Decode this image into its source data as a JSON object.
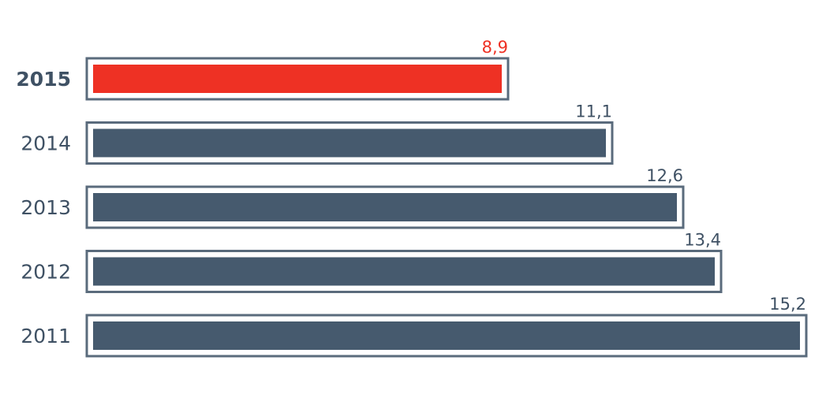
{
  "chart_data": {
    "type": "bar",
    "orientation": "horizontal",
    "title": "",
    "xlabel": "",
    "ylabel": "",
    "categories": [
      "2015",
      "2014",
      "2013",
      "2012",
      "2011"
    ],
    "values": [
      8.9,
      11.1,
      12.6,
      13.4,
      15.2
    ],
    "value_labels": [
      "8,9",
      "11,1",
      "12,6",
      "13,4",
      "15,2"
    ],
    "highlight_index": 0,
    "xlim": [
      0,
      15.2
    ],
    "grid": false,
    "legend": "none",
    "colors": {
      "bar": "#465a6e",
      "highlight": "#ee3124",
      "outline": "#5a6b7c",
      "label": "#3f5164"
    }
  }
}
